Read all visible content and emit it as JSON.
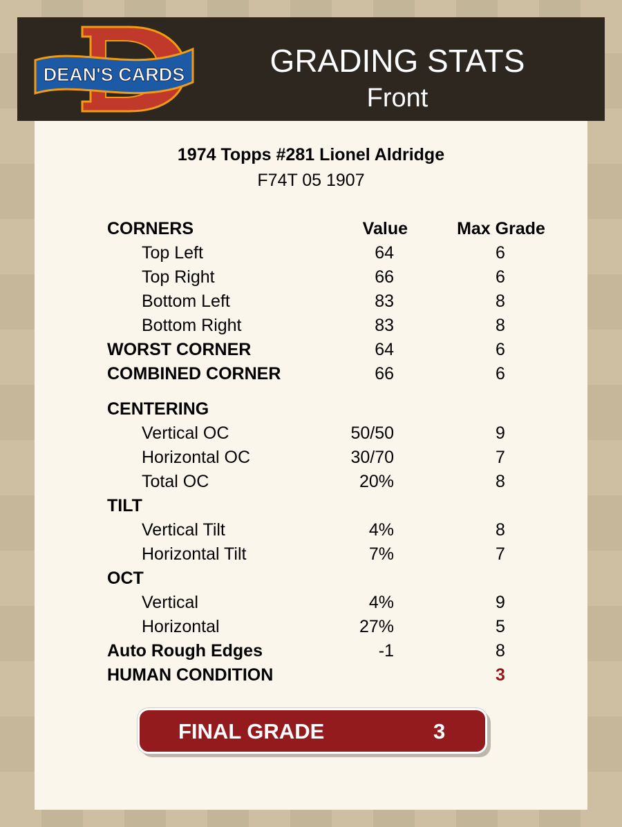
{
  "header": {
    "logo_text": "DEAN'S CARDS",
    "title": "GRADING STATS",
    "subtitle": "Front"
  },
  "card": {
    "title": "1974 Topps #281 Lionel Aldridge",
    "code": "F74T 05 1907"
  },
  "columns": {
    "value": "Value",
    "max": "Max Grade"
  },
  "rows": [
    {
      "label": "CORNERS",
      "value": "",
      "max": "",
      "type": "section"
    },
    {
      "label": "Top Left",
      "value": "64",
      "max": "6",
      "type": "sub"
    },
    {
      "label": "Top Right",
      "value": "66",
      "max": "6",
      "type": "sub"
    },
    {
      "label": "Bottom Left",
      "value": "83",
      "max": "8",
      "type": "sub"
    },
    {
      "label": "Bottom Right",
      "value": "83",
      "max": "8",
      "type": "sub"
    },
    {
      "label": "WORST CORNER",
      "value": "64",
      "max": "6",
      "type": "bold"
    },
    {
      "label": "COMBINED CORNER",
      "value": "66",
      "max": "6",
      "type": "bold"
    },
    {
      "label": "CENTERING",
      "value": "",
      "max": "",
      "type": "bold"
    },
    {
      "label": "Vertical OC",
      "value": "50/50",
      "max": "9",
      "type": "sub"
    },
    {
      "label": "Horizontal OC",
      "value": "30/70",
      "max": "7",
      "type": "sub"
    },
    {
      "label": "Total OC",
      "value": "20%",
      "max": "8",
      "type": "sub"
    },
    {
      "label": "TILT",
      "value": "",
      "max": "",
      "type": "bold"
    },
    {
      "label": "Vertical Tilt",
      "value": "4%",
      "max": "8",
      "type": "sub"
    },
    {
      "label": "Horizontal Tilt",
      "value": "7%",
      "max": "7",
      "type": "sub"
    },
    {
      "label": "OCT",
      "value": "",
      "max": "",
      "type": "bold"
    },
    {
      "label": "Vertical",
      "value": "4%",
      "max": "9",
      "type": "sub"
    },
    {
      "label": "Horizontal",
      "value": "27%",
      "max": "5",
      "type": "sub"
    },
    {
      "label": "Auto Rough Edges",
      "value": "-1",
      "max": "8",
      "type": "bold"
    },
    {
      "label": "HUMAN CONDITION",
      "value": "",
      "max": "3",
      "type": "bold"
    }
  ],
  "final": {
    "label": "FINAL GRADE",
    "value": "3"
  },
  "colors": {
    "header_bg": "#2e2720",
    "accent_red": "#931b1d",
    "card_bg": "#fbf6ec"
  }
}
